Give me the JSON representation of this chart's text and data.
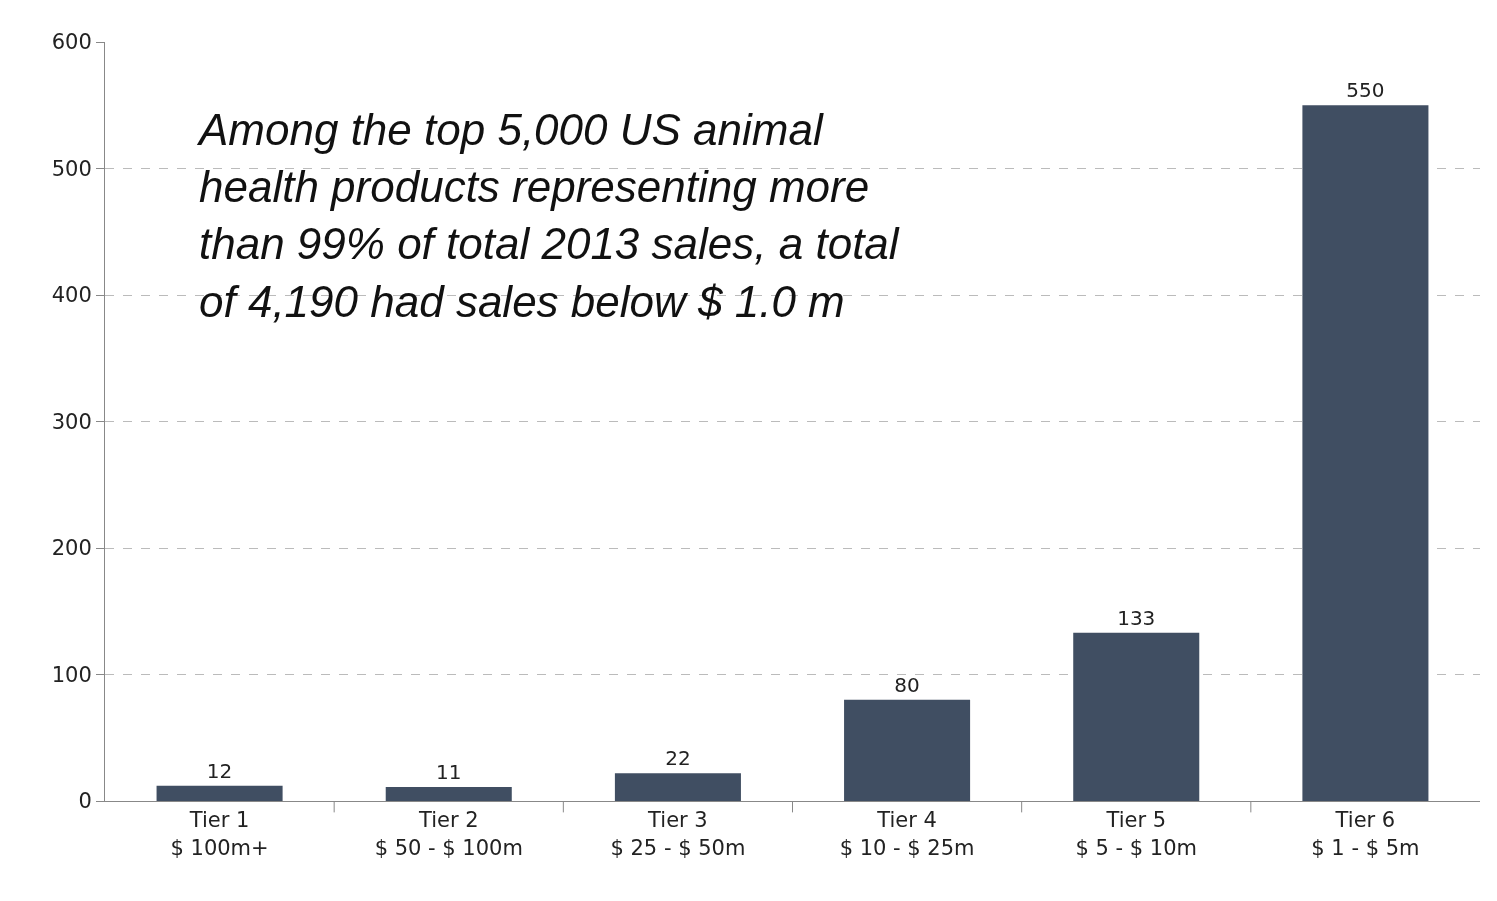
{
  "chart_data": {
    "type": "bar",
    "categories": [
      "Tier 1\n$ 100m+",
      "Tier 2\n$ 50 - $ 100m",
      "Tier 3\n$ 25 - $ 50m",
      "Tier 4\n$ 10 - $ 25m",
      "Tier 5\n$ 5 - $ 10m",
      "Tier 6\n$ 1 - $ 5m"
    ],
    "values": [
      12,
      11,
      22,
      80,
      133,
      550
    ],
    "color": "#404e62",
    "ylim": [
      0,
      600
    ],
    "yticks": [
      0,
      100,
      200,
      300,
      400,
      500,
      600
    ],
    "grid": "y",
    "data_labels": true,
    "annotations": [
      "Among the top 5,000 US animal\nhealth products representing more\nthan 99% of total 2013 sales, a total\nof 4,190 had sales below $ 1.0 m"
    ]
  }
}
